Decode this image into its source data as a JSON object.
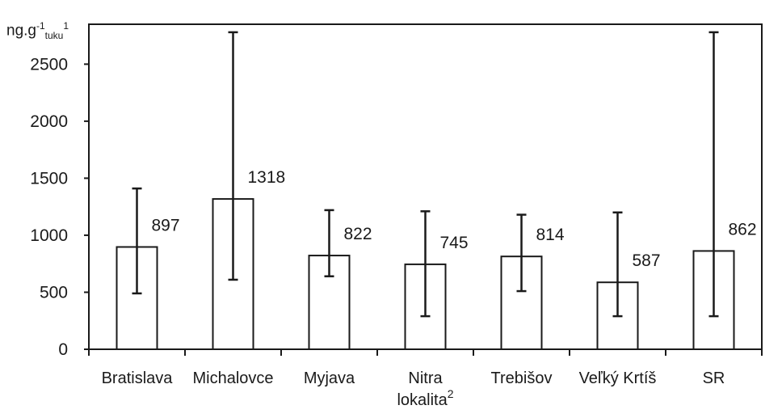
{
  "chart_data": {
    "type": "bar",
    "ylabel": {
      "main": "ng",
      "dot": ".",
      "g": "g",
      "exponent": "-1",
      "subscript": "tuku",
      "footnote": "1"
    },
    "xlabel": {
      "text": "lokalita",
      "footnote": "2"
    },
    "categories": [
      "Bratislava",
      "Michalovce",
      "Myjava",
      "Nitra",
      "Trebišov",
      "Veľký Krtíš",
      "SR"
    ],
    "values": [
      897,
      1318,
      822,
      745,
      814,
      587,
      862
    ],
    "value_labels": [
      "897",
      "1318",
      "822",
      "745",
      "814",
      "587",
      "862"
    ],
    "error_low": [
      490,
      610,
      640,
      290,
      510,
      290,
      290
    ],
    "error_high": [
      1410,
      2780,
      1220,
      1210,
      1180,
      1200,
      2780
    ],
    "yticks": [
      0,
      500,
      1000,
      1500,
      2000,
      2500
    ],
    "ytick_labels": [
      "0",
      "500",
      "1000",
      "1500",
      "2000",
      "2500"
    ],
    "ylim": [
      0,
      2850
    ],
    "grid": false,
    "bar_fill": "#ffffff",
    "line_color": "#1a1a1a"
  }
}
